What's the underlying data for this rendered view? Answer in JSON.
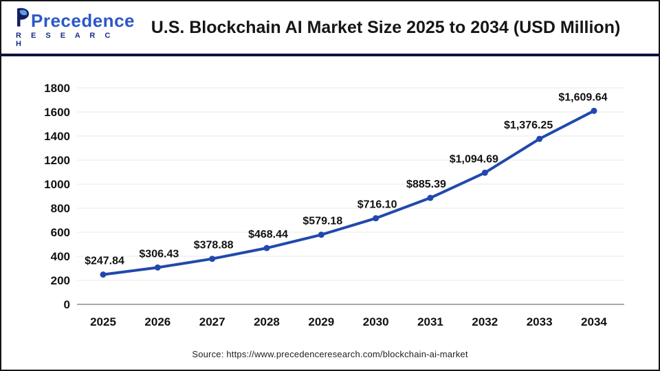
{
  "header": {
    "logo": {
      "name": "Precedence",
      "subname": "R E S E A R C H"
    },
    "title": "U.S. Blockchain AI Market Size 2025 to 2034 (USD Million)"
  },
  "chart_data": {
    "type": "line",
    "title": "U.S. Blockchain AI Market Size 2025 to 2034 (USD Million)",
    "categories": [
      "2025",
      "2026",
      "2027",
      "2028",
      "2029",
      "2030",
      "2031",
      "2032",
      "2033",
      "2034"
    ],
    "series": [
      {
        "name": "U.S. Blockchain AI Market Size (USD Million)",
        "values": [
          247.84,
          306.43,
          378.88,
          468.44,
          579.18,
          716.1,
          885.39,
          1094.69,
          1376.25,
          1609.64
        ],
        "labels": [
          "$247.84",
          "$306.43",
          "$378.88",
          "$468.44",
          "$579.18",
          "$716.10",
          "$885.39",
          "$1,094.69",
          "$1,376.25",
          "$1,609.64"
        ]
      }
    ],
    "xlabel": "",
    "ylabel": "",
    "ylim": [
      0,
      1800
    ],
    "yticks": [
      0,
      200,
      400,
      600,
      800,
      1000,
      1200,
      1400,
      1600,
      1800
    ],
    "grid": true,
    "legend_position": "none",
    "line_color": "#2149ac",
    "marker": "circle",
    "gridline_color": "#e9e9e9",
    "axis_line_color": "#a8a8a8",
    "label_color": "#111111"
  },
  "footer": {
    "source": "Source: https://www.precedenceresearch.com/blockchain-ai-market"
  },
  "colors": {
    "accent_line": "#2149ac",
    "header_divider": "#0d1240",
    "logo_navy": "#141c63",
    "logo_leaf_blue": "#5b9be0",
    "logo_blue": "#2b57c9",
    "frame_border": "#161616"
  }
}
